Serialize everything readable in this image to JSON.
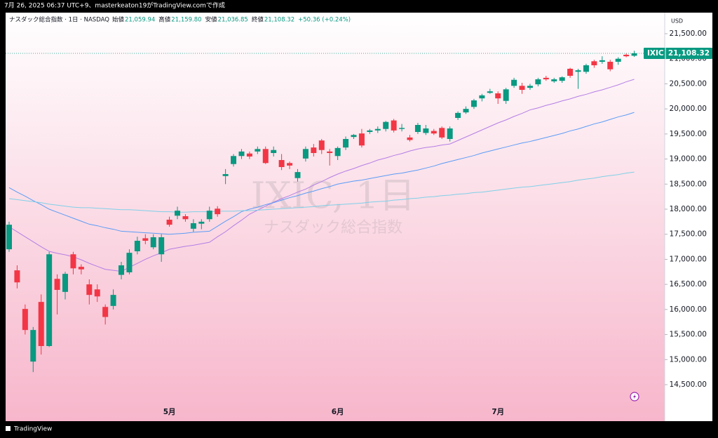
{
  "caption": "7月 26, 2025 06:37 UTC+9、masterkeaton19がTradingView.comで作成",
  "footer": "TradingView",
  "chart_data": {
    "type": "candlestick",
    "symbol_line": "ナスダック総合指数 · 1日 · NASDAQ",
    "legend_ohlc": [
      {
        "label": "始値",
        "value": "21,059.94"
      },
      {
        "label": "高値",
        "value": "21,159.80"
      },
      {
        "label": "安値",
        "value": "21,036.85"
      },
      {
        "label": "終値",
        "value": "21,108.32"
      }
    ],
    "change": "+50.36 (+0.24%)",
    "watermark": "IXIC, 1日",
    "watermark_sub": "ナスダック総合指数",
    "currency": "USD",
    "price_tag": {
      "symbol": "IXIC",
      "label": "21,108.32"
    },
    "up_color": "#089981",
    "down_color": "#f23645",
    "categories": [
      null,
      null,
      null,
      null,
      null,
      null,
      null,
      null,
      null,
      null,
      null,
      null,
      null,
      null,
      null,
      null,
      null,
      null,
      null,
      null,
      "5月",
      null,
      null,
      null,
      null,
      null,
      null,
      null,
      null,
      null,
      null,
      null,
      null,
      null,
      null,
      null,
      null,
      null,
      null,
      null,
      null,
      "6月",
      null,
      null,
      null,
      null,
      null,
      null,
      null,
      null,
      null,
      null,
      null,
      null,
      null,
      null,
      null,
      null,
      null,
      null,
      null,
      "7月",
      null,
      null,
      null,
      null,
      null,
      null,
      null,
      null,
      null,
      null,
      null,
      null,
      null,
      null,
      null,
      null,
      null
    ],
    "open": [
      17200,
      16780,
      16010,
      14960,
      16150,
      15270,
      16610,
      16350,
      17100,
      16850,
      16500,
      16400,
      16050,
      16070,
      16690,
      16740,
      17160,
      17420,
      17240,
      17100,
      17790,
      17870,
      17860,
      17610,
      17710,
      17800,
      18010,
      18660,
      18900,
      19060,
      19110,
      19150,
      19200,
      19120,
      18980,
      18920,
      18620,
      19010,
      19230,
      19370,
      19150,
      19060,
      19230,
      19440,
      19510,
      19540,
      19570,
      19600,
      19770,
      19600,
      19430,
      19540,
      19520,
      19560,
      19620,
      19400,
      19820,
      19930,
      20040,
      20210,
      20320,
      20310,
      20160,
      20460,
      20460,
      20420,
      20490,
      20620,
      20550,
      20560,
      20800,
      20740,
      20740,
      20950,
      20940,
      20940,
      20940,
      21080,
      21059.94
    ],
    "high": [
      17750,
      16880,
      16100,
      15650,
      16300,
      17150,
      16700,
      16750,
      17150,
      16900,
      16600,
      16500,
      16100,
      16400,
      16950,
      17200,
      17450,
      17500,
      17500,
      17500,
      17850,
      18050,
      17900,
      17800,
      17800,
      18050,
      18060,
      18800,
      19100,
      19200,
      19150,
      19250,
      19250,
      19250,
      19100,
      18950,
      18800,
      19250,
      19300,
      19400,
      19200,
      19250,
      19450,
      19500,
      19600,
      19600,
      19650,
      19760,
      19800,
      19700,
      19480,
      19720,
      19680,
      19600,
      19650,
      19650,
      19950,
      20050,
      20200,
      20300,
      20400,
      20350,
      20420,
      20620,
      20520,
      20500,
      20620,
      20660,
      20620,
      20650,
      20820,
      20800,
      20900,
      20980,
      21050,
      20980,
      21030,
      21110,
      21159.8
    ],
    "low": [
      17150,
      16420,
      15500,
      14750,
      15100,
      15250,
      15900,
      16200,
      16700,
      16700,
      16100,
      16150,
      15700,
      16000,
      16600,
      16700,
      17100,
      17300,
      17200,
      16950,
      17650,
      17800,
      17750,
      17550,
      17600,
      17750,
      17850,
      18500,
      18850,
      19000,
      19000,
      19100,
      18900,
      19050,
      18780,
      18800,
      18550,
      18950,
      19050,
      19100,
      18870,
      18980,
      19180,
      19400,
      19230,
      19500,
      19520,
      19550,
      19530,
      19550,
      19350,
      19500,
      19480,
      19480,
      19400,
      19350,
      19780,
      19900,
      20000,
      20150,
      20300,
      20100,
      20100,
      20420,
      20300,
      20380,
      20450,
      20560,
      20520,
      20520,
      20620,
      20400,
      20700,
      20820,
      20900,
      20750,
      20880,
      21030,
      21036.85
    ],
    "close": [
      17690,
      16540,
      15590,
      15590,
      15270,
      17100,
      16390,
      16710,
      16820,
      16800,
      16290,
      16260,
      15850,
      16290,
      16880,
      17130,
      17370,
      17370,
      17440,
      17440,
      17690,
      17970,
      17800,
      17720,
      17750,
      17970,
      17900,
      18700,
      19060,
      19150,
      19050,
      19200,
      18920,
      19180,
      18840,
      18870,
      18740,
      19200,
      19120,
      19180,
      19120,
      19220,
      19400,
      19480,
      19270,
      19570,
      19600,
      19740,
      19570,
      19620,
      19380,
      19680,
      19610,
      19510,
      19430,
      19610,
      19920,
      20000,
      20170,
      20270,
      20350,
      20210,
      20390,
      20580,
      20380,
      20460,
      20590,
      20590,
      20590,
      20630,
      20660,
      20770,
      20870,
      20870,
      20970,
      20790,
      21000,
      21050,
      21108.32
    ],
    "series": [
      {
        "color": "#b47ee5",
        "values": [
          17650,
          17550,
          17450,
          17350,
          17250,
          17160,
          17120,
          17090,
          17050,
          16990,
          16920,
          16860,
          16800,
          16780,
          16760,
          16840,
          16920,
          17000,
          17070,
          17130,
          17200,
          17230,
          17260,
          17280,
          17310,
          17340,
          17450,
          17550,
          17670,
          17780,
          17900,
          17980,
          18060,
          18140,
          18210,
          18270,
          18340,
          18400,
          18480,
          18550,
          18630,
          18700,
          18760,
          18810,
          18870,
          18920,
          18980,
          19020,
          19070,
          19110,
          19160,
          19200,
          19230,
          19250,
          19280,
          19300,
          19370,
          19440,
          19510,
          19580,
          19650,
          19720,
          19780,
          19850,
          19910,
          19980,
          20020,
          20070,
          20110,
          20160,
          20200,
          20250,
          20290,
          20340,
          20380,
          20430,
          20480,
          20540,
          20590
        ]
      },
      {
        "color": "#5b9cf6",
        "values": [
          18430,
          18340,
          18260,
          18170,
          18090,
          18000,
          17940,
          17880,
          17820,
          17760,
          17700,
          17670,
          17630,
          17600,
          17560,
          17550,
          17540,
          17530,
          17520,
          17510,
          17500,
          17510,
          17520,
          17540,
          17550,
          17560,
          17660,
          17760,
          17850,
          17950,
          18000,
          18040,
          18090,
          18130,
          18180,
          18230,
          18270,
          18320,
          18360,
          18410,
          18450,
          18500,
          18530,
          18560,
          18580,
          18610,
          18640,
          18670,
          18700,
          18720,
          18750,
          18780,
          18820,
          18860,
          18910,
          18950,
          18990,
          19030,
          19070,
          19120,
          19160,
          19200,
          19240,
          19280,
          19320,
          19350,
          19390,
          19430,
          19470,
          19510,
          19560,
          19600,
          19650,
          19700,
          19740,
          19790,
          19840,
          19880,
          19930
        ]
      },
      {
        "color": "#7fd0e8",
        "values": [
          18210,
          18190,
          18170,
          18150,
          18130,
          18100,
          18080,
          18060,
          18040,
          18030,
          18030,
          18020,
          18010,
          18000,
          17990,
          17990,
          17980,
          17970,
          17960,
          17950,
          17950,
          17940,
          17940,
          17950,
          17950,
          17950,
          17960,
          17960,
          17960,
          17970,
          17970,
          17980,
          17990,
          18000,
          18010,
          18020,
          18030,
          18040,
          18050,
          18070,
          18080,
          18090,
          18100,
          18110,
          18120,
          18140,
          18150,
          18160,
          18180,
          18190,
          18210,
          18220,
          18240,
          18250,
          18270,
          18280,
          18300,
          18310,
          18330,
          18340,
          18360,
          18380,
          18400,
          18420,
          18440,
          18450,
          18470,
          18490,
          18510,
          18530,
          18550,
          18580,
          18600,
          18620,
          18650,
          18670,
          18690,
          18720,
          18740
        ]
      }
    ],
    "ylim": [
      13772,
      21920
    ],
    "yticks": [
      {
        "value": 14500,
        "label": "14,500.00"
      },
      {
        "value": 15000,
        "label": "15,000.00"
      },
      {
        "value": 15500,
        "label": "15,500.00"
      },
      {
        "value": 16000,
        "label": "16,000.00"
      },
      {
        "value": 16500,
        "label": "16,500.00"
      },
      {
        "value": 17000,
        "label": "17,000.00"
      },
      {
        "value": 17500,
        "label": "17,500.00"
      },
      {
        "value": 18000,
        "label": "18,000.00"
      },
      {
        "value": 18500,
        "label": "18,500.00"
      },
      {
        "value": 19000,
        "label": "19,000.00"
      },
      {
        "value": 19500,
        "label": "19,500.00"
      },
      {
        "value": 20000,
        "label": "20,000.00"
      },
      {
        "value": 20500,
        "label": "20,500.00"
      },
      {
        "value": 21000,
        "label": "21,000.00"
      },
      {
        "value": 21500,
        "label": "21,500.00"
      }
    ],
    "grid": false
  }
}
